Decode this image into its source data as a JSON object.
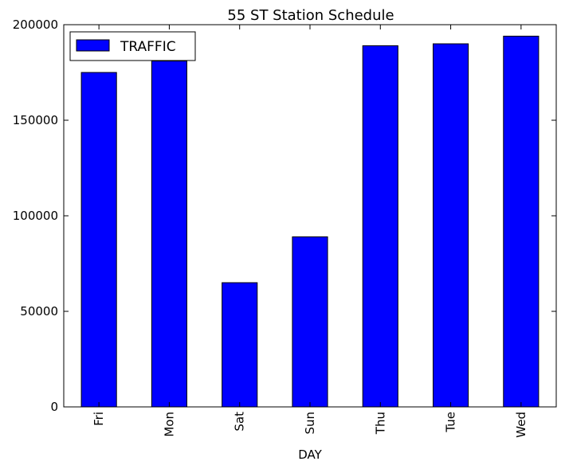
{
  "chart_data": {
    "type": "bar",
    "title": "55 ST Station Schedule",
    "xlabel": "DAY",
    "ylabel": "",
    "categories": [
      "Fri",
      "Mon",
      "Sat",
      "Sun",
      "Thu",
      "Tue",
      "Wed"
    ],
    "series": [
      {
        "name": "TRAFFIC",
        "color": "#0000ff",
        "values": [
          175000,
          181000,
          65000,
          89000,
          189000,
          190000,
          194000
        ]
      }
    ],
    "ylim": [
      0,
      200000
    ],
    "yticks": [
      0,
      50000,
      100000,
      150000,
      200000
    ],
    "ytick_labels": [
      "0",
      "50000",
      "100000",
      "150000",
      "200000"
    ],
    "grid": false,
    "legend_position": "top-left"
  }
}
